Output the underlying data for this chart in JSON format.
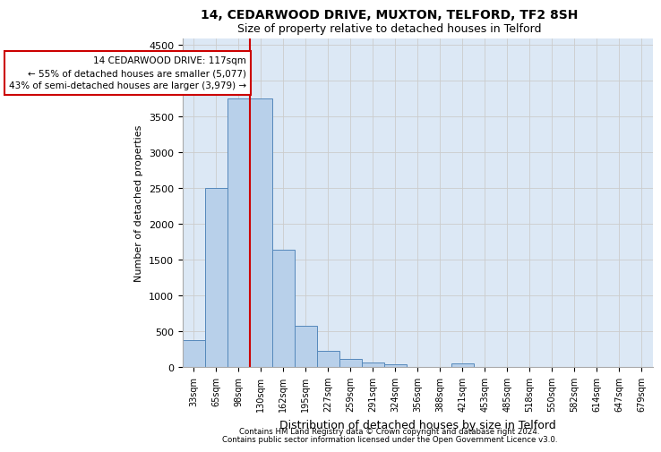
{
  "title1": "14, CEDARWOOD DRIVE, MUXTON, TELFORD, TF2 8SH",
  "title2": "Size of property relative to detached houses in Telford",
  "xlabel": "Distribution of detached houses by size in Telford",
  "ylabel": "Number of detached properties",
  "footnote1": "Contains HM Land Registry data © Crown copyright and database right 2024.",
  "footnote2": "Contains public sector information licensed under the Open Government Licence v3.0.",
  "annotation_line1": "14 CEDARWOOD DRIVE: 117sqm",
  "annotation_line2": "← 55% of detached houses are smaller (5,077)",
  "annotation_line3": "43% of semi-detached houses are larger (3,979) →",
  "bar_color": "#b8d0ea",
  "bar_edge_color": "#5588bb",
  "vline_color": "#cc0000",
  "annotation_box_edgecolor": "#cc0000",
  "grid_color": "#cccccc",
  "bg_color": "#dce8f5",
  "categories": [
    "33sqm",
    "65sqm",
    "98sqm",
    "130sqm",
    "162sqm",
    "195sqm",
    "227sqm",
    "259sqm",
    "291sqm",
    "324sqm",
    "356sqm",
    "388sqm",
    "421sqm",
    "453sqm",
    "485sqm",
    "518sqm",
    "550sqm",
    "582sqm",
    "614sqm",
    "647sqm",
    "679sqm"
  ],
  "values": [
    370,
    2500,
    3750,
    3750,
    1640,
    580,
    230,
    110,
    62,
    38,
    0,
    0,
    55,
    0,
    0,
    0,
    0,
    0,
    0,
    0,
    0
  ],
  "ylim": [
    0,
    4600
  ],
  "yticks": [
    0,
    500,
    1000,
    1500,
    2000,
    2500,
    3000,
    3500,
    4000,
    4500
  ],
  "vline_x": 2.5
}
